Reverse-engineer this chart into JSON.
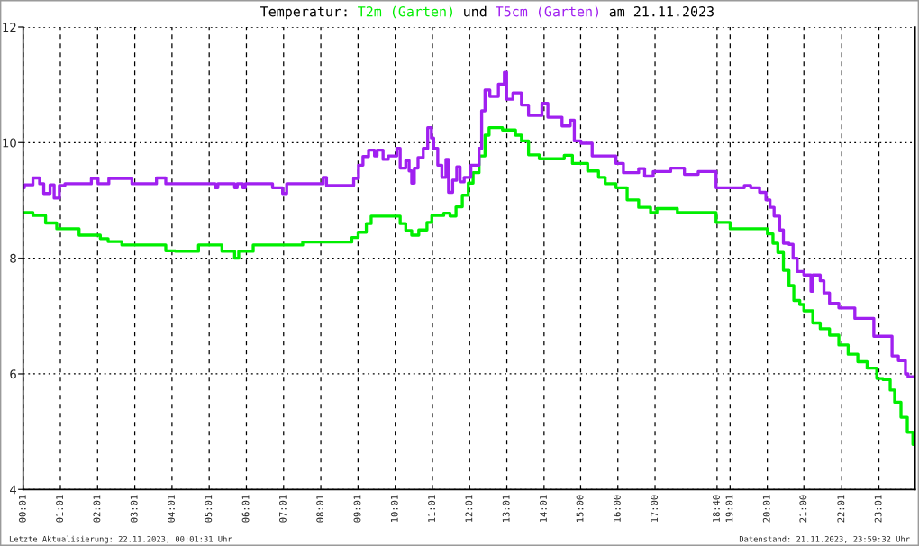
{
  "chart_data": {
    "type": "step",
    "title": "Temperatur:",
    "annotations": [
      "und",
      "am 21.11.2023",
      "Letzte Aktualisierung: 22.11.2023, 00:01:31 Uhr",
      "Datenstand: 21.11.2023, 23:59:32 Uhr"
    ],
    "xlim": [
      0.017,
      23.99
    ],
    "xticks": [
      {
        "value": 0.017,
        "label": "00:01"
      },
      {
        "value": 1.017,
        "label": "01:01"
      },
      {
        "value": 2.017,
        "label": "02:01"
      },
      {
        "value": 3.017,
        "label": "03:01"
      },
      {
        "value": 4.017,
        "label": "04:01"
      },
      {
        "value": 5.017,
        "label": "05:01"
      },
      {
        "value": 6.017,
        "label": "06:01"
      },
      {
        "value": 7.017,
        "label": "07:01"
      },
      {
        "value": 8.017,
        "label": "08:01"
      },
      {
        "value": 9.017,
        "label": "09:01"
      },
      {
        "value": 10.017,
        "label": "10:01"
      },
      {
        "value": 11.017,
        "label": "11:01"
      },
      {
        "value": 12.017,
        "label": "12:01"
      },
      {
        "value": 13.017,
        "label": "13:01"
      },
      {
        "value": 14.017,
        "label": "14:01"
      },
      {
        "value": 15,
        "label": "15:00"
      },
      {
        "value": 16,
        "label": "16:00"
      },
      {
        "value": 17,
        "label": "17:00"
      },
      {
        "value": 18.667,
        "label": "18:40"
      },
      {
        "value": 19.017,
        "label": "19:01"
      },
      {
        "value": 20.017,
        "label": "20:01"
      },
      {
        "value": 21,
        "label": "21:00"
      },
      {
        "value": 22.017,
        "label": "22:01"
      },
      {
        "value": 23.017,
        "label": "23:01"
      }
    ],
    "ylim": [
      4,
      12
    ],
    "yticks": [
      4,
      6,
      8,
      10,
      12
    ],
    "grid": true,
    "legend": "top",
    "series": [
      {
        "name": "T2m (Garten)",
        "color": "#00ee00",
        "x": [
          0.017,
          0.28,
          0.62,
          0.92,
          1.52,
          2.09,
          2.3,
          2.67,
          3.85,
          4.11,
          4.73,
          5.36,
          5.7,
          5.81,
          6.2,
          7.53,
          8.85,
          9.02,
          9.24,
          9.37,
          10.15,
          10.3,
          10.46,
          10.65,
          10.87,
          11.0,
          11.32,
          11.49,
          11.65,
          11.82,
          11.98,
          12.11,
          12.27,
          12.43,
          12.54,
          12.9,
          13.25,
          13.41,
          13.6,
          13.89,
          14.56,
          14.78,
          15.19,
          15.48,
          15.66,
          15.95,
          16.25,
          16.56,
          16.88,
          17.05,
          17.6,
          18.64,
          19.02,
          20.02,
          20.17,
          20.3,
          20.45,
          20.6,
          20.73,
          20.89,
          21.0,
          21.24,
          21.44,
          21.69,
          21.94,
          22.19,
          22.45,
          22.7,
          22.96,
          23.13,
          23.32,
          23.44,
          23.61,
          23.78,
          23.93,
          23.99
        ],
        "values": [
          8.79,
          8.74,
          8.61,
          8.51,
          8.4,
          8.34,
          8.29,
          8.23,
          8.13,
          8.12,
          8.23,
          8.12,
          8.0,
          8.12,
          8.23,
          8.28,
          8.36,
          8.45,
          8.6,
          8.73,
          8.6,
          8.48,
          8.4,
          8.49,
          8.62,
          8.74,
          8.78,
          8.73,
          8.89,
          9.09,
          9.3,
          9.48,
          9.77,
          10.13,
          10.26,
          10.22,
          10.13,
          10.03,
          9.79,
          9.72,
          9.78,
          9.64,
          9.51,
          9.4,
          9.29,
          9.22,
          9.01,
          8.88,
          8.79,
          8.86,
          8.79,
          8.62,
          8.51,
          8.42,
          8.26,
          8.1,
          7.79,
          7.53,
          7.27,
          7.2,
          7.09,
          6.88,
          6.78,
          6.67,
          6.5,
          6.34,
          6.21,
          6.1,
          5.92,
          5.9,
          5.72,
          5.51,
          5.25,
          4.99,
          4.78,
          4.78
        ]
      },
      {
        "name": "T5cm (Garten)",
        "color": "#a020f0",
        "x": [
          0.017,
          0.05,
          0.28,
          0.46,
          0.57,
          0.74,
          0.85,
          0.99,
          1.14,
          1.85,
          2.03,
          2.32,
          2.94,
          3.6,
          3.85,
          5.18,
          5.25,
          5.7,
          5.77,
          5.92,
          5.99,
          6.72,
          6.99,
          7.1,
          8.08,
          8.17,
          8.9,
          9.03,
          9.15,
          9.3,
          9.46,
          9.53,
          9.69,
          9.83,
          10.06,
          10.15,
          10.3,
          10.39,
          10.46,
          10.53,
          10.63,
          10.77,
          10.89,
          10.99,
          11.05,
          11.16,
          11.27,
          11.38,
          11.45,
          11.56,
          11.67,
          11.76,
          11.87,
          12.05,
          12.27,
          12.34,
          12.43,
          12.56,
          12.79,
          12.95,
          13.01,
          13.18,
          13.41,
          13.6,
          13.96,
          14.12,
          14.5,
          14.72,
          14.83,
          15.01,
          15.31,
          15.95,
          16.15,
          16.56,
          16.72,
          16.95,
          17.42,
          17.79,
          18.16,
          18.64,
          19.4,
          19.57,
          19.81,
          19.98,
          20.09,
          20.2,
          20.35,
          20.45,
          20.6,
          20.71,
          20.82,
          21.0,
          21.19,
          21.24,
          21.44,
          21.54,
          21.69,
          21.94,
          22.37,
          22.88,
          23.37,
          23.54,
          23.73,
          23.8,
          23.99
        ],
        "values": [
          9.22,
          9.27,
          9.39,
          9.29,
          9.12,
          9.27,
          9.04,
          9.26,
          9.29,
          9.38,
          9.29,
          9.38,
          9.29,
          9.39,
          9.29,
          9.22,
          9.29,
          9.22,
          9.29,
          9.22,
          9.29,
          9.22,
          9.12,
          9.29,
          9.4,
          9.26,
          9.38,
          9.61,
          9.76,
          9.87,
          9.77,
          9.87,
          9.71,
          9.77,
          9.9,
          9.56,
          9.69,
          9.51,
          9.3,
          9.56,
          9.74,
          9.9,
          10.26,
          10.08,
          9.9,
          9.61,
          9.4,
          9.71,
          9.14,
          9.35,
          9.58,
          9.32,
          9.4,
          9.61,
          9.9,
          10.55,
          10.91,
          10.8,
          11.01,
          11.22,
          10.75,
          10.86,
          10.65,
          10.47,
          10.68,
          10.44,
          10.29,
          10.39,
          10.03,
          9.99,
          9.77,
          9.64,
          9.48,
          9.55,
          9.42,
          9.5,
          9.56,
          9.45,
          9.5,
          9.22,
          9.26,
          9.22,
          9.14,
          9.01,
          8.88,
          8.73,
          8.49,
          8.26,
          8.24,
          8.0,
          7.77,
          7.71,
          7.43,
          7.71,
          7.61,
          7.4,
          7.22,
          7.14,
          6.96,
          6.65,
          6.31,
          6.23,
          6.0,
          5.95,
          5.95
        ]
      }
    ]
  }
}
